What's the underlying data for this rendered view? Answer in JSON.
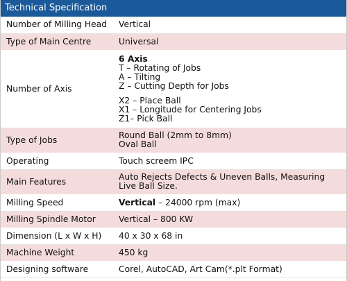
{
  "title": "Technical Specification",
  "rows": [
    {
      "label": "Number of Milling Head",
      "value": "Vertical"
    },
    {
      "label": "Type of Main Centre",
      "value": "Universal"
    },
    {
      "label": "Number of Axis",
      "axis_heading": "6 Axis",
      "axis_group1": [
        "T – Rotating of Jobs",
        "A – Tilting",
        "Z – Cutting Depth for Jobs"
      ],
      "axis_group2": [
        "X2 – Place Ball",
        "X1 – Longitude for Centering Jobs",
        "Z1– Pick Ball"
      ]
    },
    {
      "label": "Type of Jobs",
      "lines": [
        "Round Ball (2mm to 8mm)",
        "Oval Ball"
      ]
    },
    {
      "label": "Operating",
      "value": "Touch screem IPC"
    },
    {
      "label": "Main Features",
      "lines": [
        "Auto Rejects Defects & Uneven Balls, Measuring",
        "Live Ball Size."
      ]
    },
    {
      "label": "Milling Speed",
      "value_bold": "Vertical",
      "value_rest": " – 24000 rpm (max)"
    },
    {
      "label": "Milling Spindle Motor",
      "value": "Vertical – 800 KW"
    },
    {
      "label": "Dimension (L x W x H)",
      "value": "40 x 30 x 68 in"
    },
    {
      "label": "Machine Weight",
      "value": "450 kg"
    },
    {
      "label": "Designing software",
      "value": "Corel, AutoCAD, Art Cam(*.plt Format)"
    }
  ]
}
